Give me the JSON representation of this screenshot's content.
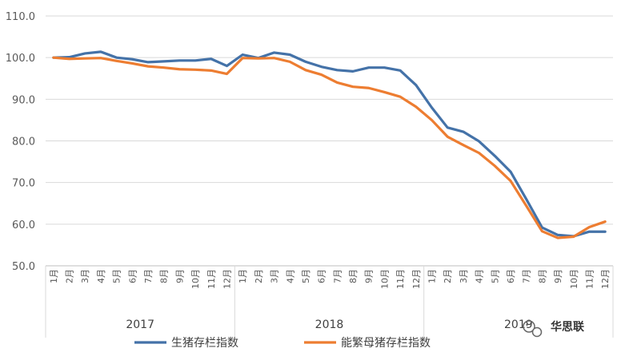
{
  "chart_data": {
    "type": "line",
    "title": "",
    "xlabel": "",
    "ylabel": "",
    "ylim": [
      50,
      110
    ],
    "yticks": [
      "50.0",
      "60.0",
      "70.0",
      "80.0",
      "90.0",
      "100.0",
      "110.0"
    ],
    "grid": true,
    "legend_position": "bottom",
    "categories": [
      "1月",
      "2月",
      "3月",
      "4月",
      "5月",
      "6月",
      "7月",
      "8月",
      "9月",
      "10月",
      "11月",
      "12月",
      "1月",
      "2月",
      "3月",
      "4月",
      "5月",
      "6月",
      "7月",
      "8月",
      "9月",
      "10月",
      "11月",
      "12月",
      "1月",
      "2月",
      "3月",
      "4月",
      "5月",
      "6月",
      "7月",
      "8月",
      "9月",
      "10月",
      "11月",
      "12月"
    ],
    "years": [
      {
        "label": "2017"
      },
      {
        "label": "2018"
      },
      {
        "label": "2019"
      }
    ],
    "series": [
      {
        "name": "生猪存栏指数",
        "color": "#4472A8",
        "values": [
          100.0,
          100.1,
          101.0,
          101.4,
          100.0,
          99.6,
          98.9,
          99.1,
          99.3,
          99.3,
          99.7,
          98.0,
          100.7,
          99.9,
          101.2,
          100.7,
          99.0,
          97.8,
          97.0,
          96.7,
          97.6,
          97.6,
          96.9,
          93.4,
          88.0,
          83.2,
          82.2,
          79.9,
          76.4,
          72.6,
          66.0,
          59.2,
          57.4,
          57.1,
          58.2,
          58.2
        ]
      },
      {
        "name": "能繁母猪存栏指数",
        "color": "#ED7D31",
        "values": [
          100.0,
          99.7,
          99.8,
          99.9,
          99.2,
          98.6,
          97.9,
          97.6,
          97.2,
          97.1,
          96.9,
          96.1,
          99.9,
          99.8,
          99.9,
          99.0,
          97.0,
          95.9,
          94.0,
          93.0,
          92.7,
          91.7,
          90.6,
          88.2,
          85.0,
          81.0,
          79.0,
          77.1,
          74.0,
          70.4,
          64.4,
          58.3,
          56.7,
          57.0,
          59.3,
          60.6
        ]
      }
    ]
  },
  "watermark": {
    "text": "华思联",
    "icon": "wechat-icon"
  }
}
